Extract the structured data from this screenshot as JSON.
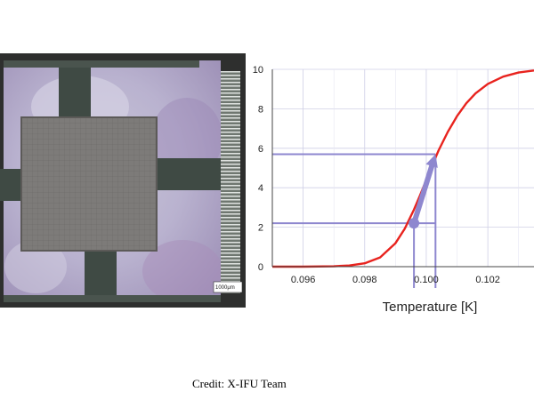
{
  "micrograph": {
    "scale_label": "1000μm"
  },
  "credit": "Credit: X-IFU Team",
  "chart_data": {
    "type": "line",
    "xlabel": "Temperature [K]",
    "ylabel": "",
    "title": "",
    "xlim": [
      0.095,
      0.1035
    ],
    "ylim": [
      0,
      10
    ],
    "xticks": [
      0.096,
      0.098,
      0.1,
      0.102
    ],
    "xtick_labels": [
      "0.096",
      "0.098",
      "0.100",
      "0.102"
    ],
    "yticks": [
      0,
      2,
      4,
      6,
      8,
      10
    ],
    "ytick_labels": [
      "0",
      "2",
      "4",
      "6",
      "8",
      "10"
    ],
    "grid": true,
    "series": [
      {
        "color": "#e8231e",
        "x": [
          0.095,
          0.096,
          0.097,
          0.0975,
          0.098,
          0.0985,
          0.099,
          0.0993,
          0.0996,
          0.0998,
          0.1,
          0.1002,
          0.1004,
          0.1007,
          0.101,
          0.1013,
          0.1016,
          0.102,
          0.1025,
          0.103,
          0.1035
        ],
        "y": [
          0.0,
          0.0,
          0.02,
          0.06,
          0.17,
          0.47,
          1.19,
          1.92,
          2.89,
          3.62,
          4.39,
          5.16,
          5.89,
          6.83,
          7.63,
          8.28,
          8.78,
          9.26,
          9.63,
          9.84,
          9.94
        ]
      }
    ],
    "annotations": {
      "color": "#8e87cf",
      "hlines": [
        2.2,
        5.7
      ],
      "vlines": [
        0.0996,
        0.1003
      ],
      "arrow_from": [
        0.0996,
        2.2
      ],
      "arrow_to": [
        0.1003,
        5.7
      ]
    }
  }
}
